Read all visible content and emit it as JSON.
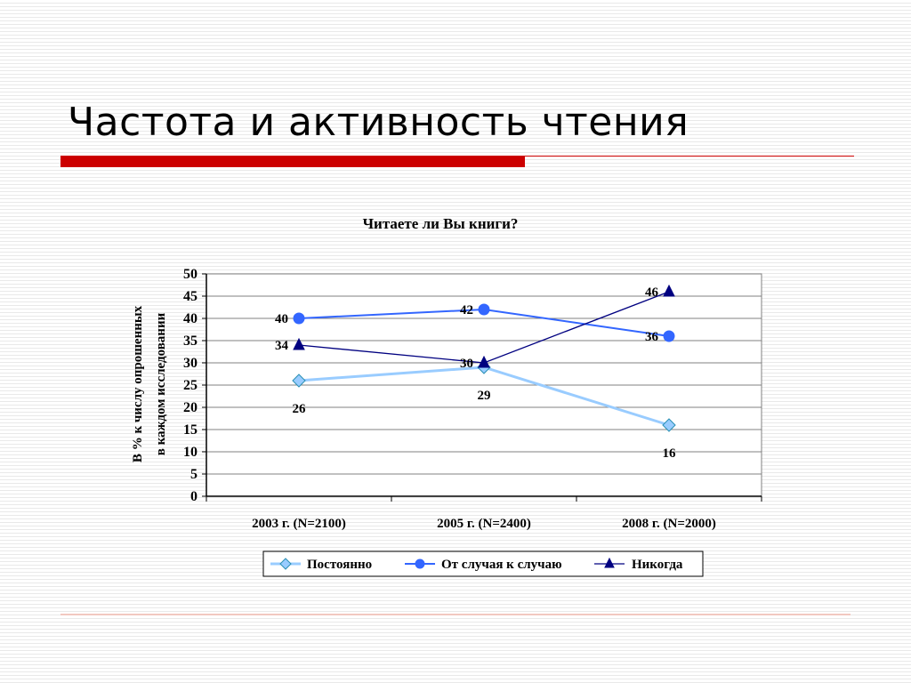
{
  "slide": {
    "title": "Частота и активность чтения"
  },
  "colors": {
    "accent_red": "#cc0000",
    "series_postoyanno": "#99ccff",
    "series_ot_sluchaya": "#3366ff",
    "series_nikogda": "#000080"
  },
  "chart_data": {
    "type": "line",
    "title": "Читаете ли Вы книги?",
    "xlabel": "",
    "ylabel": "В % к числу опрошенных в каждом исследовании",
    "ylabel_lines": [
      "В % к числу опрошенных",
      "в каждом исследовании"
    ],
    "categories": [
      "2003 г. (N=2100)",
      "2005 г. (N=2400)",
      "2008 г. (N=2000)"
    ],
    "ylim": [
      0,
      50
    ],
    "yticks": [
      0,
      5,
      10,
      15,
      20,
      25,
      30,
      35,
      40,
      45,
      50
    ],
    "grid": true,
    "legend_position": "bottom",
    "series": [
      {
        "name": "Постоянно",
        "values": [
          26,
          29,
          16
        ],
        "color": "#99ccff",
        "marker": "diamond",
        "label_side": "below"
      },
      {
        "name": "От случая к случаю",
        "values": [
          40,
          42,
          36
        ],
        "color": "#3366ff",
        "marker": "circle",
        "label_side": "left"
      },
      {
        "name": "Никогда",
        "values": [
          34,
          30,
          46
        ],
        "color": "#000080",
        "marker": "triangle",
        "label_side": "left"
      }
    ]
  }
}
